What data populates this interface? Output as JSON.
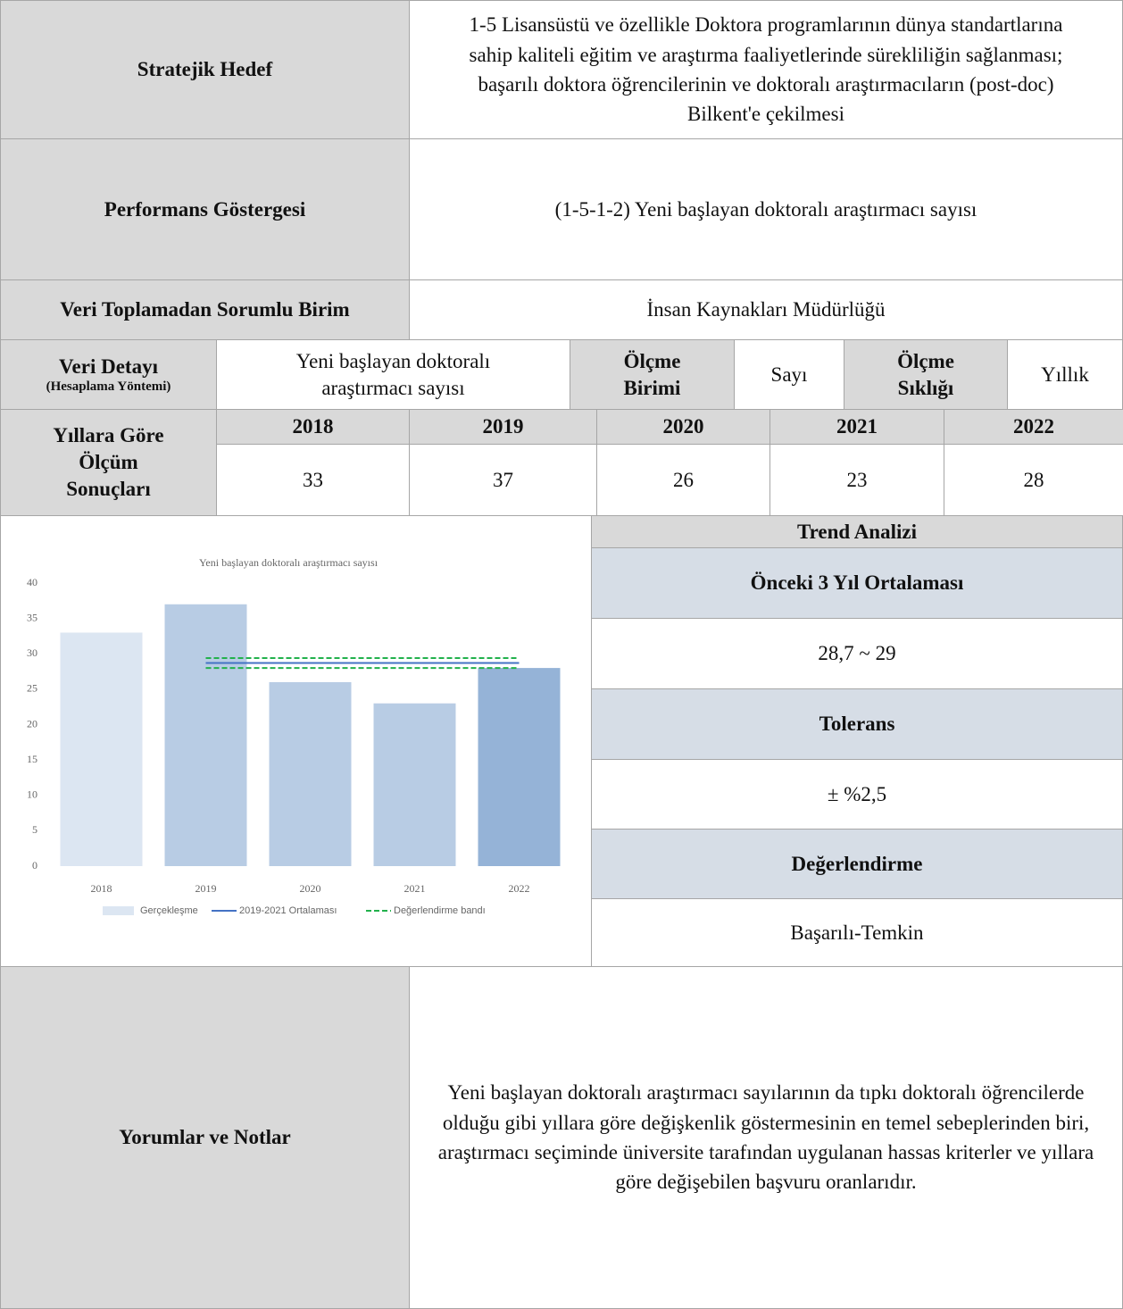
{
  "strategic_goal": {
    "label": "Stratejik Hedef",
    "text": "1-5 Lisansüstü ve özellikle Doktora programlarının dünya standartlarına sahip kaliteli eğitim ve araştırma faaliyetlerinde sürekliliğin sağlanması; başarılı doktora öğrencilerinin ve doktoralı araştırmacıların (post-doc) Bilkent'e çekilmesi"
  },
  "indicator": {
    "label": "Performans Göstergesi",
    "text": "(1-5-1-2) Yeni başlayan doktoralı araştırmacı sayısı"
  },
  "unit": {
    "label": "Veri Toplamadan Sorumlu Birim",
    "text": "İnsan Kaynakları Müdürlüğü"
  },
  "detail": {
    "label": "Veri Detayı",
    "sublabel": "(Hesaplama Yöntemi)",
    "text": "Yeni başlayan doktoralı araştırmacı sayısı",
    "measure_unit_label": "Ölçme Birimi",
    "measure_unit": "Sayı",
    "frequency_label": "Ölçme Sıklığı",
    "frequency": "Yıllık"
  },
  "results": {
    "label": "Yıllara Göre Ölçüm Sonuçları",
    "years": [
      "2018",
      "2019",
      "2020",
      "2021",
      "2022"
    ],
    "values": [
      33,
      37,
      26,
      23,
      28
    ]
  },
  "chart_data": {
    "type": "bar",
    "title": "Yeni başlayan doktoralı araştırmacı sayısı",
    "categories": [
      "2018",
      "2019",
      "2020",
      "2021",
      "2022"
    ],
    "ylim": [
      0,
      40
    ],
    "yticks": [
      0,
      5,
      10,
      15,
      20,
      25,
      30,
      35,
      40
    ],
    "series": [
      {
        "name": "Gerçekleşme",
        "kind": "bar",
        "color": "#dce6f2",
        "colors": [
          "#dce6f2",
          "#b8cce4",
          "#b8cce4",
          "#b8cce4",
          "#95b3d7"
        ],
        "values": [
          33,
          37,
          26,
          23,
          28
        ]
      },
      {
        "name": "2019-2021 Ortalaması",
        "kind": "line",
        "color": "#4472c4",
        "values": [
          null,
          28.7,
          28.7,
          28.7,
          28.7
        ]
      },
      {
        "name": "Değerlendirme bandı",
        "kind": "dashed",
        "color": "#22b14c",
        "values": [
          null,
          29.4,
          29.4,
          29.4,
          29.4
        ],
        "lower": [
          null,
          28.0,
          28.0,
          28.0,
          28.0
        ]
      }
    ]
  },
  "trend": {
    "title": "Trend Analizi",
    "average_label": "Önceki 3 Yıl Ortalaması",
    "average": "28,7 ~ 29",
    "tolerance_label": "Tolerans",
    "tolerance": "± %2,5",
    "evaluation_label": "Değerlendirme",
    "evaluation": "Başarılı-Temkin"
  },
  "comments": {
    "label": "Yorumlar ve Notlar",
    "text": "Yeni başlayan doktoralı araştırmacı sayılarının da tıpkı doktoralı öğrencilerde olduğu gibi yıllara göre değişkenlik göstermesinin en temel sebeplerinden biri, araştırmacı seçiminde üniversite tarafından uygulanan hassas kriterler ve yıllara göre değişebilen başvuru oranlarıdır."
  }
}
